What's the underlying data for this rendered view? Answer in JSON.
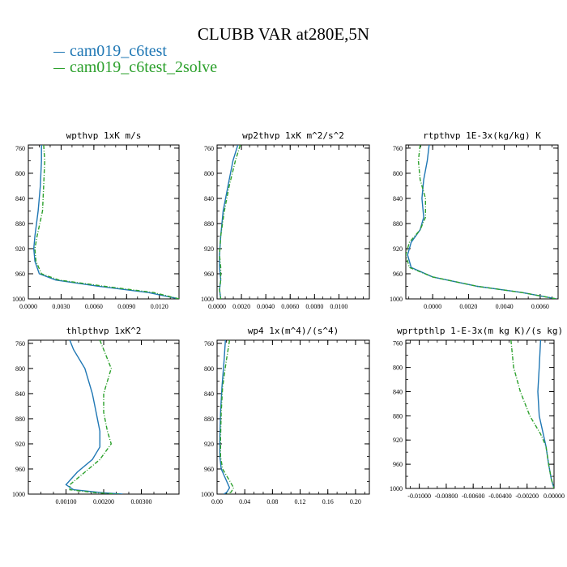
{
  "figure": {
    "title": "CLUBB VAR at280E,5N",
    "legend": [
      {
        "label": "cam019_c6test",
        "color": "#1f77b4"
      },
      {
        "label": "cam019_c6test_2solve",
        "color": "#2ca02c"
      }
    ]
  },
  "chart_data": [
    {
      "type": "line",
      "title": "wpthvp  1xK m/s",
      "xlim": [
        0.0,
        0.0138
      ],
      "ylim": [
        1000,
        755
      ],
      "xticks": [
        0.0,
        0.003,
        0.006,
        0.009,
        0.012
      ],
      "xtick_labels": [
        "0.0000",
        "0.0030",
        "0.0060",
        "0.0090",
        "0.0120"
      ],
      "yticks": [
        760,
        800,
        840,
        880,
        920,
        960,
        1000
      ],
      "series": [
        {
          "name": "cam019_c6test",
          "color": "#1f77b4",
          "dashed": false,
          "x": [
            0.0012,
            0.0012,
            0.0011,
            0.0009,
            0.0006,
            0.0005,
            0.0006,
            0.001,
            0.0025,
            0.0065,
            0.011,
            0.0138
          ],
          "y": [
            755,
            780,
            820,
            860,
            900,
            920,
            940,
            960,
            970,
            980,
            990,
            1000
          ]
        },
        {
          "name": "cam019_c6test_2solve",
          "color": "#2ca02c",
          "dashed": true,
          "x": [
            0.0014,
            0.0015,
            0.0014,
            0.0013,
            0.0008,
            0.0006,
            0.0007,
            0.0012,
            0.0028,
            0.007,
            0.0115,
            0.0138
          ],
          "y": [
            755,
            780,
            820,
            860,
            900,
            920,
            940,
            960,
            970,
            980,
            990,
            1000
          ]
        }
      ]
    },
    {
      "type": "line",
      "title": "wp2thvp  1xK m^2/s^2",
      "xlim": [
        0.0,
        0.0125
      ],
      "ylim": [
        1000,
        755
      ],
      "xticks": [
        0.0,
        0.002,
        0.004,
        0.006,
        0.008,
        0.01
      ],
      "xtick_labels": [
        "0.0000",
        "0.0020",
        "0.0040",
        "0.0060",
        "0.0080",
        "0.0100"
      ],
      "yticks": [
        760,
        800,
        840,
        880,
        920,
        960,
        1000
      ],
      "series": [
        {
          "name": "cam019_c6test",
          "color": "#1f77b4",
          "dashed": false,
          "x": [
            0.0017,
            0.0013,
            0.0009,
            0.0005,
            0.0003,
            0.0002,
            0.0002,
            0.0003,
            0.0002,
            0.0003
          ],
          "y": [
            755,
            780,
            820,
            860,
            900,
            930,
            950,
            970,
            985,
            1000
          ]
        },
        {
          "name": "cam019_c6test_2solve",
          "color": "#2ca02c",
          "dashed": true,
          "x": [
            0.0019,
            0.0015,
            0.001,
            0.0006,
            0.0003,
            0.0002,
            0.0003,
            0.0003,
            0.0002,
            0.0003
          ],
          "y": [
            755,
            780,
            820,
            860,
            900,
            930,
            950,
            970,
            985,
            1000
          ]
        }
      ]
    },
    {
      "type": "line",
      "title": "rtpthvp  1E-3x(kg/kg) K",
      "xlim": [
        -0.0015,
        0.007
      ],
      "ylim": [
        1000,
        755
      ],
      "xticks": [
        0.0,
        0.002,
        0.004,
        0.006
      ],
      "xtick_labels": [
        "0.0000",
        "0.0020",
        "0.0040",
        "0.0060"
      ],
      "yticks": [
        760,
        800,
        840,
        880,
        920,
        960,
        1000
      ],
      "series": [
        {
          "name": "cam019_c6test",
          "color": "#1f77b4",
          "dashed": false,
          "x": [
            -0.0002,
            -0.0003,
            -0.0005,
            -0.0006,
            -0.0005,
            -0.0007,
            -0.0012,
            -0.0014,
            -0.0012,
            0.0,
            0.0025,
            0.005,
            0.0069
          ],
          "y": [
            755,
            780,
            810,
            840,
            870,
            890,
            910,
            930,
            950,
            965,
            980,
            990,
            1000
          ]
        },
        {
          "name": "cam019_c6test_2solve",
          "color": "#2ca02c",
          "dashed": true,
          "x": [
            -0.0007,
            -0.0008,
            -0.0007,
            -0.0004,
            -0.0004,
            -0.0007,
            -0.0013,
            -0.0015,
            -0.0013,
            0.0,
            0.0025,
            0.005,
            0.0069
          ],
          "y": [
            755,
            780,
            810,
            840,
            870,
            890,
            910,
            930,
            950,
            965,
            980,
            990,
            1000
          ]
        }
      ]
    },
    {
      "type": "line",
      "title": "thlpthvp  1xK^2",
      "xlim": [
        0.0,
        0.004
      ],
      "ylim": [
        1000,
        755
      ],
      "xticks": [
        0.001,
        0.002,
        0.003
      ],
      "xtick_labels": [
        "0.00100",
        "0.00200",
        "0.00300"
      ],
      "yticks": [
        760,
        800,
        840,
        880,
        920,
        960,
        1000
      ],
      "series": [
        {
          "name": "cam019_c6test",
          "color": "#1f77b4",
          "dashed": false,
          "x": [
            0.0011,
            0.0012,
            0.0015,
            0.0017,
            0.0018,
            0.0019,
            0.0019,
            0.0017,
            0.0013,
            0.001,
            0.0012,
            0.002,
            0.0025
          ],
          "y": [
            755,
            770,
            800,
            840,
            870,
            900,
            925,
            945,
            965,
            985,
            993,
            998,
            1000
          ]
        },
        {
          "name": "cam019_c6test_2solve",
          "color": "#2ca02c",
          "dashed": true,
          "x": [
            0.0019,
            0.002,
            0.0022,
            0.002,
            0.002,
            0.0021,
            0.0022,
            0.0019,
            0.0015,
            0.0011,
            0.0011,
            0.0018,
            0.0024
          ],
          "y": [
            755,
            770,
            800,
            840,
            870,
            900,
            920,
            945,
            965,
            985,
            993,
            998,
            1000
          ]
        }
      ]
    },
    {
      "type": "line",
      "title": "wp4  1x(m^4)/(s^4)",
      "xlim": [
        0.0,
        0.22
      ],
      "ylim": [
        1000,
        755
      ],
      "xticks": [
        0.0,
        0.04,
        0.08,
        0.12,
        0.16,
        0.2
      ],
      "xtick_labels": [
        "0.00",
        "0.04",
        "0.08",
        "0.12",
        "0.16",
        "0.20"
      ],
      "yticks": [
        760,
        800,
        840,
        880,
        920,
        960,
        1000
      ],
      "series": [
        {
          "name": "cam019_c6test",
          "color": "#1f77b4",
          "dashed": false,
          "x": [
            0.012,
            0.01,
            0.007,
            0.005,
            0.004,
            0.004,
            0.006,
            0.012,
            0.018,
            0.014,
            0.01
          ],
          "y": [
            755,
            790,
            830,
            870,
            910,
            940,
            960,
            975,
            990,
            997,
            1000
          ]
        },
        {
          "name": "cam019_c6test_2solve",
          "color": "#2ca02c",
          "dashed": true,
          "x": [
            0.018,
            0.013,
            0.008,
            0.006,
            0.005,
            0.005,
            0.008,
            0.016,
            0.024,
            0.02,
            0.014
          ],
          "y": [
            755,
            790,
            830,
            870,
            910,
            940,
            960,
            975,
            990,
            997,
            1000
          ]
        }
      ]
    },
    {
      "type": "line",
      "title": "wprtpthlp  1-E-3x(m kg K)/(s kg)",
      "xlim": [
        -0.011,
        0.0
      ],
      "ylim": [
        1000,
        755
      ],
      "xticks": [
        -0.01,
        -0.008,
        -0.006,
        -0.004,
        -0.002,
        0.0
      ],
      "xtick_labels": [
        "-0.01000",
        "-0.00800",
        "-0.00600",
        "-0.00400",
        "-0.00200",
        "0.00000"
      ],
      "yticks": [
        760,
        800,
        840,
        880,
        920,
        960,
        1000
      ],
      "series": [
        {
          "name": "cam019_c6test",
          "color": "#1f77b4",
          "dashed": false,
          "x": [
            -0.001,
            -0.0011,
            -0.0012,
            -0.0011,
            -0.0008,
            -0.0006,
            -0.0004,
            -0.0002,
            0.0
          ],
          "y": [
            755,
            800,
            840,
            880,
            910,
            930,
            960,
            985,
            1000
          ]
        },
        {
          "name": "cam019_c6test_2solve",
          "color": "#2ca02c",
          "dashed": true,
          "x": [
            -0.0032,
            -0.003,
            -0.0025,
            -0.0018,
            -0.001,
            -0.0006,
            -0.0004,
            -0.0002,
            0.0
          ],
          "y": [
            755,
            800,
            840,
            880,
            910,
            930,
            960,
            985,
            1000
          ]
        }
      ]
    }
  ]
}
